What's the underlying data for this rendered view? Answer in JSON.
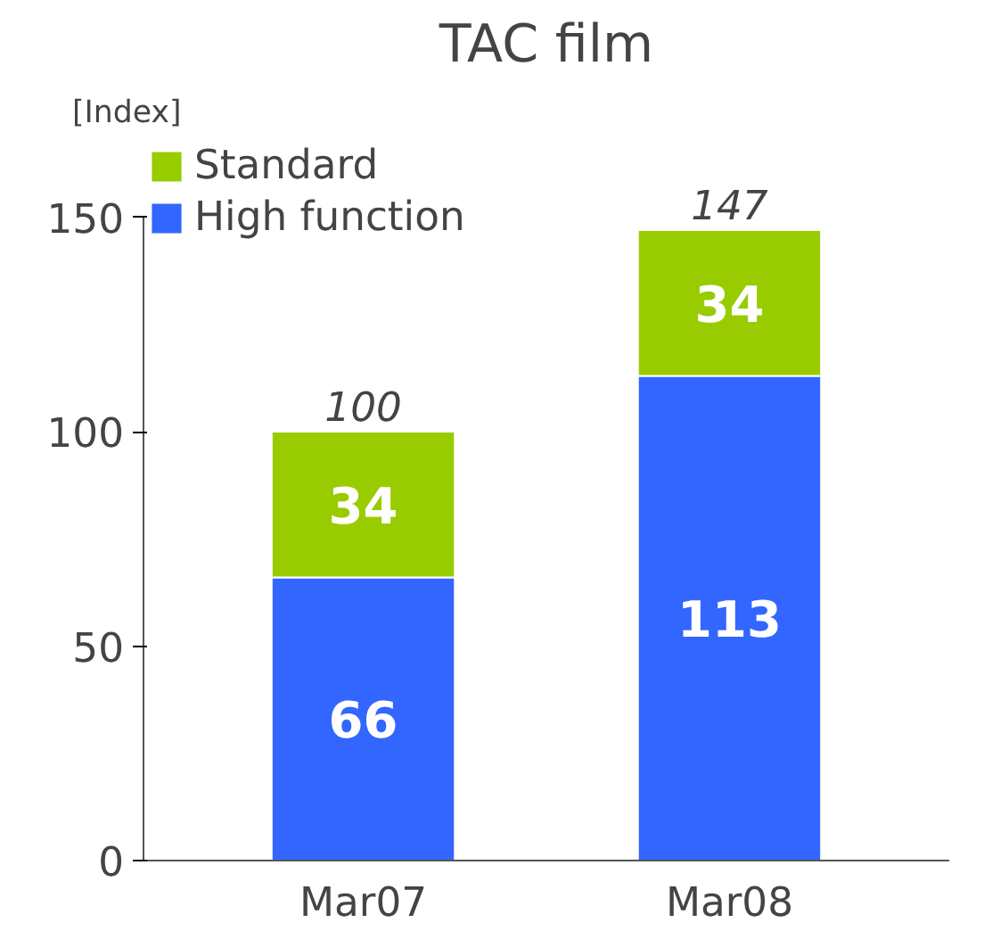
{
  "chart_data": {
    "type": "bar",
    "title": "TAC film",
    "ylabel": "[Index]",
    "categories": [
      "Mar07",
      "Mar08"
    ],
    "stacked": true,
    "series": [
      {
        "name": "High function",
        "color": "#3366ff",
        "values": [
          66,
          113
        ]
      },
      {
        "name": "Standard",
        "color": "#99cc00",
        "values": [
          34,
          34
        ]
      }
    ],
    "totals": [
      "100",
      "147"
    ],
    "data_labels": true,
    "ylim": [
      0,
      150
    ],
    "yticks": [
      0,
      50,
      100,
      150
    ],
    "grid": false,
    "legend": "top left"
  }
}
